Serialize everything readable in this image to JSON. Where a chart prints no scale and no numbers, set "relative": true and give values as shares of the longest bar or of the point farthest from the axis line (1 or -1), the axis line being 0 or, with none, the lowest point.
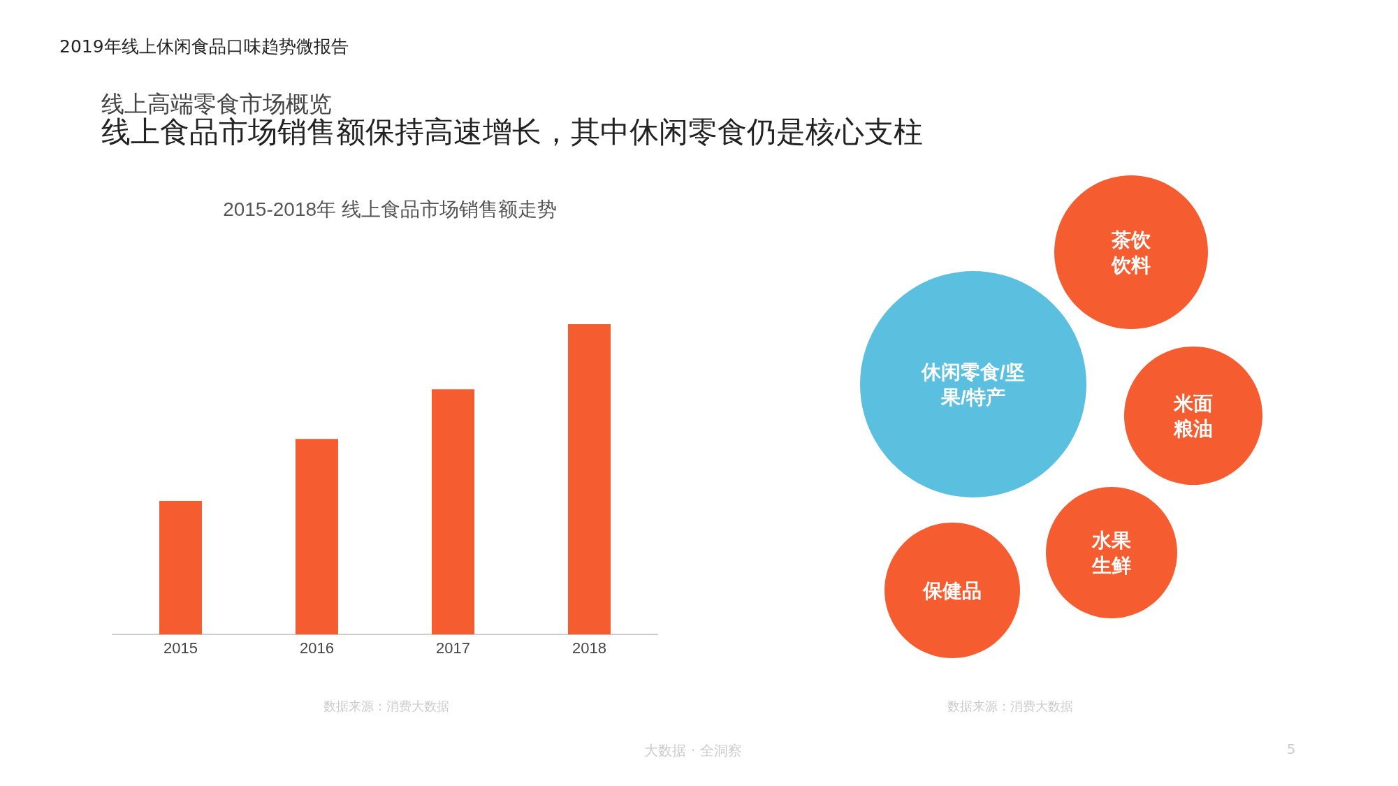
{
  "chart_data": [
    {
      "type": "bar",
      "title": "2015-2018年 线上食品市场销售额走势",
      "categories": [
        "2015",
        "2016",
        "2017",
        "2018"
      ],
      "values": [
        0.43,
        0.63,
        0.79,
        1
      ],
      "color": "#f55d30",
      "relative": true,
      "annotations": [
        "2019年线上休闲食品口味趋势微报告",
        "线上高端零食市场概览",
        "线上食品市场销售额保持高速增长，其中休闲零食仍是核心支柱",
        "数据来源：消费大数据"
      ]
    },
    {
      "type": "other",
      "categories": [
        "休闲零食/坚果/特产",
        "茶饮饮料",
        "米面粮油",
        "水果生鲜",
        "保健品"
      ],
      "colors": [
        "#5bc0e0",
        "#f55d30",
        "#f55d30",
        "#f55d30",
        "#f55d30"
      ],
      "annotations": [
        "数据来源：消费大数据",
        "大数据 · 全洞察",
        "5"
      ]
    }
  ]
}
